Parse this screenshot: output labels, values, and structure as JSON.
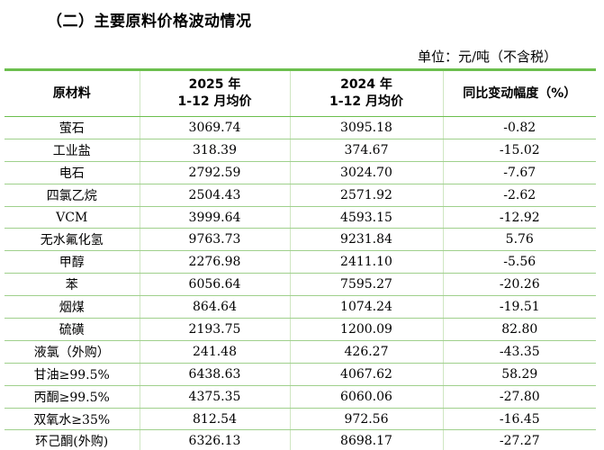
{
  "section_title": "（二）主要原料价格波动情况",
  "unit_note": "单位：元/吨（不含税）",
  "table": {
    "headers": {
      "material": "原材料",
      "price_2025_year": "2025 年",
      "price_2025_period": "1-12 月均价",
      "price_2024_year": "2024 年",
      "price_2024_period": "1-12 月均价",
      "yoy_change": "同比变动幅度（%）"
    },
    "rows": [
      {
        "material": "萤石",
        "price_2025": "3069.74",
        "price_2024": "3095.18",
        "change": "-0.82"
      },
      {
        "material": "工业盐",
        "price_2025": "318.39",
        "price_2024": "374.67",
        "change": "-15.02"
      },
      {
        "material": "电石",
        "price_2025": "2792.59",
        "price_2024": "3024.70",
        "change": "-7.67"
      },
      {
        "material": "四氯乙烷",
        "price_2025": "2504.43",
        "price_2024": "2571.92",
        "change": "-2.62"
      },
      {
        "material": "VCM",
        "price_2025": "3999.64",
        "price_2024": "4593.15",
        "change": "-12.92"
      },
      {
        "material": "无水氟化氢",
        "price_2025": "9763.73",
        "price_2024": "9231.84",
        "change": "5.76"
      },
      {
        "material": "甲醇",
        "price_2025": "2276.98",
        "price_2024": "2411.10",
        "change": "-5.56"
      },
      {
        "material": "苯",
        "price_2025": "6056.64",
        "price_2024": "7595.27",
        "change": "-20.26"
      },
      {
        "material": "烟煤",
        "price_2025": "864.64",
        "price_2024": "1074.24",
        "change": "-19.51"
      },
      {
        "material": "硫磺",
        "price_2025": "2193.75",
        "price_2024": "1200.09",
        "change": "82.80"
      },
      {
        "material": "液氯（外购）",
        "price_2025": "241.48",
        "price_2024": "426.27",
        "change": "-43.35"
      },
      {
        "material": "甘油≥99.5%",
        "price_2025": "6438.63",
        "price_2024": "4067.62",
        "change": "58.29"
      },
      {
        "material": "丙酮≥99.5%",
        "price_2025": "4375.35",
        "price_2024": "6060.06",
        "change": "-27.80"
      },
      {
        "material": "双氧水≥35%",
        "price_2025": "812.54",
        "price_2024": "972.56",
        "change": "-16.45"
      },
      {
        "material": "环己酮(外购)",
        "price_2025": "6326.13",
        "price_2024": "8698.17",
        "change": "-27.27"
      }
    ]
  }
}
